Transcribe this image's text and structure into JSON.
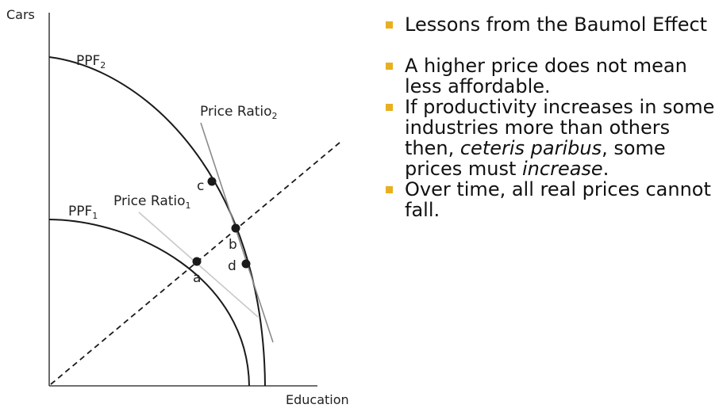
{
  "diagram": {
    "y_axis_label": "Cars",
    "x_axis_label": "Education",
    "ppf1_label": "PPF",
    "ppf1_sub": "1",
    "ppf2_label": "PPF",
    "ppf2_sub": "2",
    "price_ratio1_label": "Price Ratio",
    "price_ratio1_sub": "1",
    "price_ratio2_label": "Price Ratio",
    "price_ratio2_sub": "2",
    "points": [
      "a",
      "b",
      "c",
      "d"
    ],
    "colors": {
      "curve": "#1a1a1a",
      "price_ratio1": "#c8c8c8",
      "price_ratio2": "#8a8a8a",
      "bullet_marker": "#e8b020"
    }
  },
  "bullets": {
    "b1": "Lessons from the Baumol Effect",
    "b2": "A higher price does not mean less affordable.",
    "b3_pre": "If productivity increases in some industries more than others then, ",
    "b3_em1": "ceteris paribus",
    "b3_mid": ", some prices must ",
    "b3_em2": "increase",
    "b3_post": ".",
    "b4": "Over time, all real prices cannot fall."
  }
}
